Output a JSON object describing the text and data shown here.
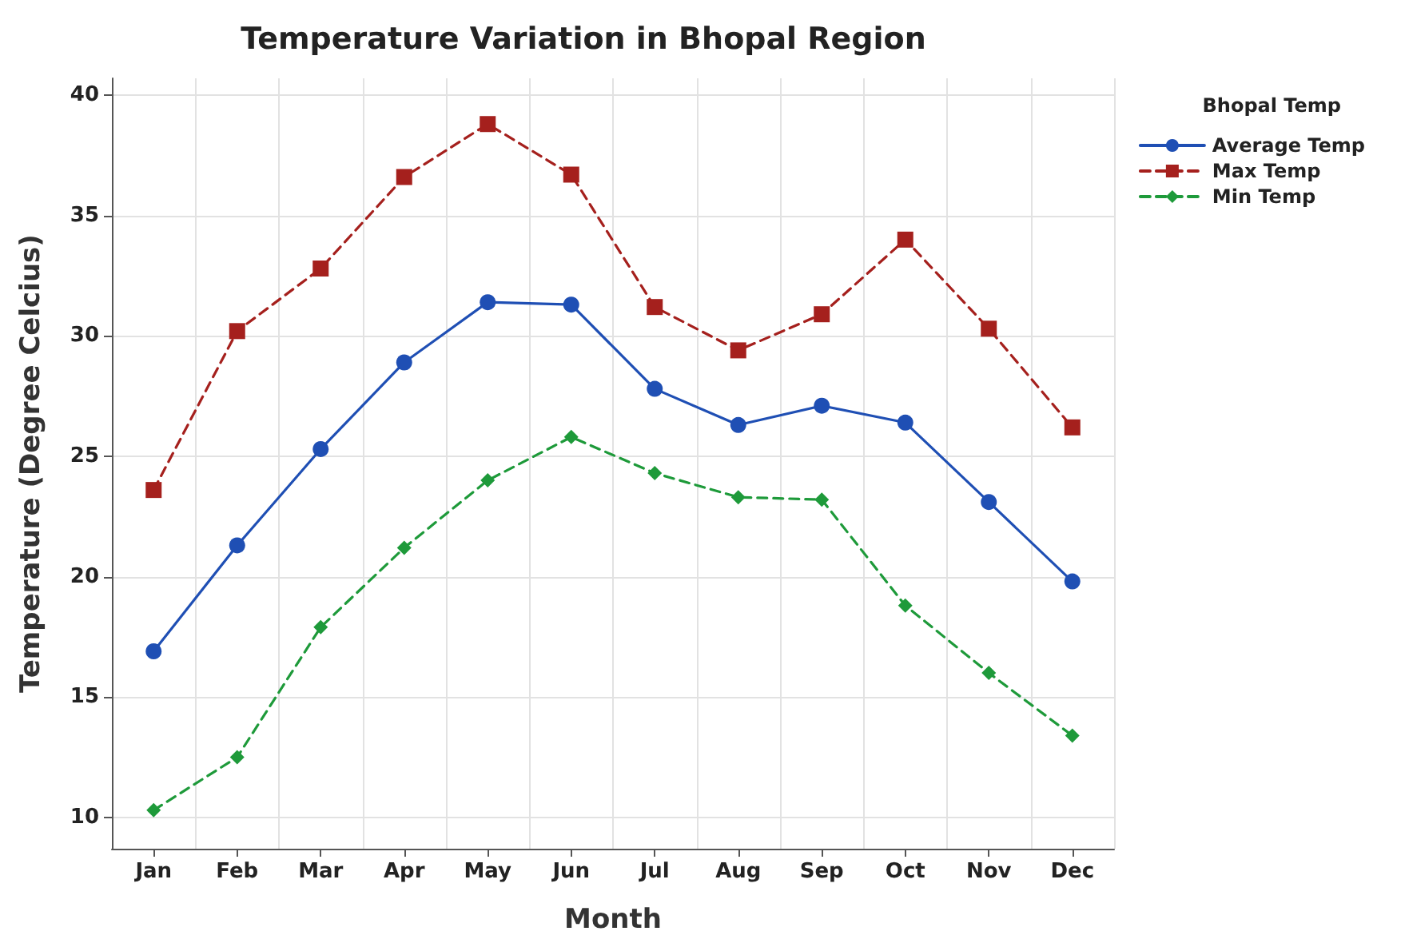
{
  "chart_data": {
    "type": "line",
    "title": "Temperature Variation in Bhopal Region",
    "xlabel": "Month",
    "ylabel": "Temperature (Degree Celcius)",
    "legend_title": "Bhopal Temp",
    "categories": [
      "Jan",
      "Feb",
      "Mar",
      "Apr",
      "May",
      "Jun",
      "Jul",
      "Aug",
      "Sep",
      "Oct",
      "Nov",
      "Dec"
    ],
    "series": [
      {
        "name": "Average Temp",
        "color": "#1f4fb4",
        "marker": "circle",
        "line_style": "solid",
        "values": [
          16.9,
          21.3,
          25.3,
          28.9,
          31.4,
          31.3,
          27.8,
          26.3,
          27.1,
          26.4,
          23.1,
          19.8
        ]
      },
      {
        "name": "Max Temp",
        "color": "#a5201d",
        "marker": "square",
        "line_style": "dashed",
        "values": [
          23.6,
          30.2,
          32.8,
          36.6,
          38.8,
          36.7,
          31.2,
          29.4,
          30.9,
          34.0,
          30.3,
          26.2
        ]
      },
      {
        "name": "Min Temp",
        "color": "#1e9a3a",
        "marker": "diamond",
        "line_style": "dashed",
        "values": [
          10.3,
          12.5,
          17.9,
          21.2,
          24.0,
          25.8,
          24.3,
          23.3,
          23.2,
          18.8,
          16.0,
          13.4
        ]
      }
    ],
    "ylim": [
      8.7,
      40.7
    ],
    "yticks": [
      10,
      15,
      20,
      25,
      30,
      35,
      40
    ],
    "grid": true,
    "legend": "top right"
  }
}
